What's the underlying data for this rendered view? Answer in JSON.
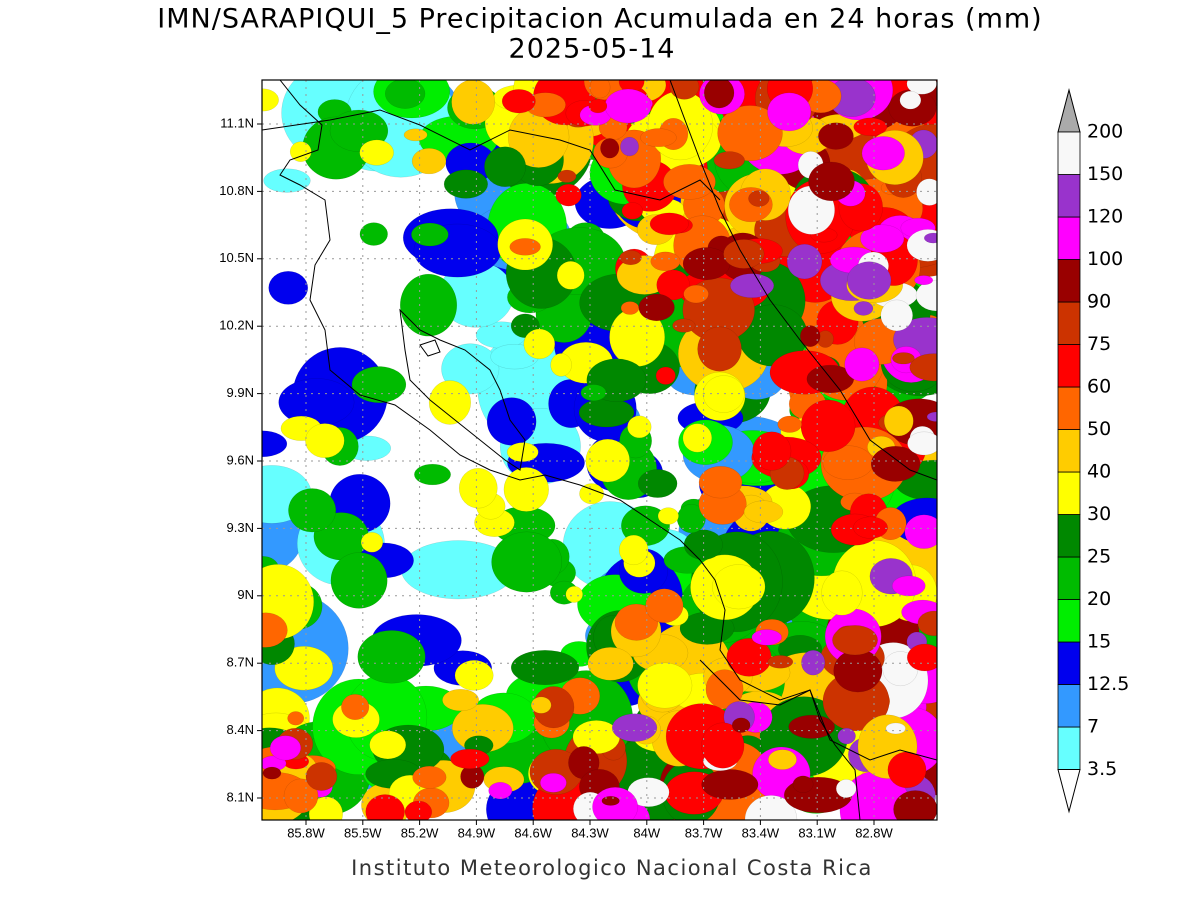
{
  "title": "IMN/SARAPIQUI_5 Precipitacion Acumulada en 24 horas (mm)",
  "subtitle": "2025-05-14",
  "map": {
    "lat_labels": [
      "11.1N",
      "10.8N",
      "10.5N",
      "10.2N",
      "9.9N",
      "9.6N",
      "9.3N",
      "9N",
      "8.7N",
      "8.4N",
      "8.1N"
    ],
    "lon_labels": [
      "85.8W",
      "85.5W",
      "85.2W",
      "84.9W",
      "84.6W",
      "84.3W",
      "84W",
      "83.7W",
      "83.4W",
      "83.1W",
      "82.8W"
    ]
  },
  "colorbar": {
    "levels": [
      3.5,
      7,
      12.5,
      15,
      20,
      25,
      30,
      40,
      50,
      60,
      75,
      90,
      100,
      120,
      150,
      200
    ],
    "colors": [
      "#66ffff",
      "#3399ff",
      "#0000ee",
      "#00ee00",
      "#00bb00",
      "#008800",
      "#ffff00",
      "#ffcc00",
      "#ff6600",
      "#ff0000",
      "#cc3300",
      "#990000",
      "#ff00ff",
      "#9933cc",
      "#f8f8f8"
    ],
    "below_color": "#ffffff",
    "above_color": "#aaaaaa"
  },
  "footer": "Instituto Meteorologico Nacional Costa Rica"
}
